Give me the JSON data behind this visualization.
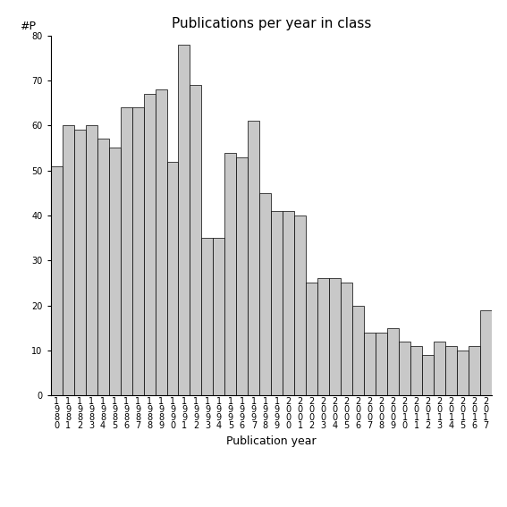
{
  "title": "Publications per year in class",
  "xlabel": "Publication year",
  "ylabel": "#P",
  "bar_color": "#c8c8c8",
  "bar_edgecolor": "#000000",
  "ylim": [
    0,
    80
  ],
  "yticks": [
    0,
    10,
    20,
    30,
    40,
    50,
    60,
    70,
    80
  ],
  "categories": [
    "1980",
    "1981",
    "1982",
    "1983",
    "1984",
    "1985",
    "1986",
    "1987",
    "1988",
    "1989",
    "1990",
    "1991",
    "1992",
    "1993",
    "1994",
    "1995",
    "1996",
    "1997",
    "1998",
    "1999",
    "2000",
    "2001",
    "2002",
    "2003",
    "2004",
    "2005",
    "2006",
    "2007",
    "2008",
    "2009",
    "2010",
    "2011",
    "2012",
    "2013",
    "2014",
    "2015",
    "2016",
    "2017"
  ],
  "values": [
    51,
    60,
    59,
    60,
    57,
    55,
    64,
    64,
    67,
    68,
    52,
    78,
    69,
    35,
    35,
    54,
    53,
    61,
    45,
    41,
    41,
    40,
    25,
    26,
    26,
    25,
    20,
    14,
    14,
    15,
    12,
    11,
    9,
    12,
    11,
    10,
    11,
    19
  ],
  "figsize": [
    5.67,
    5.67
  ],
  "dpi": 100,
  "title_fontsize": 11,
  "label_fontsize": 9,
  "tick_fontsize": 7,
  "background_color": "#ffffff"
}
